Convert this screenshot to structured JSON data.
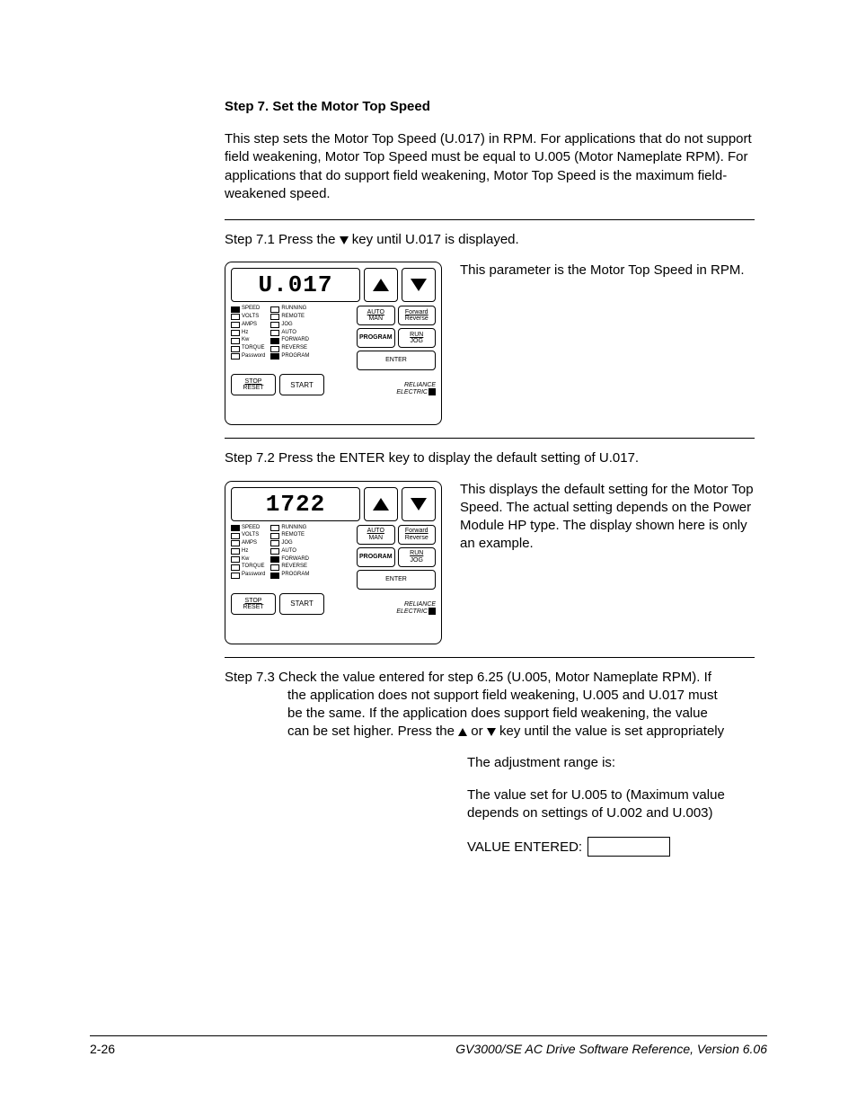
{
  "step_title": "Step 7.   Set the Motor Top Speed",
  "intro": "This step sets the Motor Top Speed (U.017) in RPM. For applications that do not support field weakening, Motor Top Speed must be equal to U.005 (Motor Nameplate RPM). For applications that do support field weakening, Motor Top Speed is the maximum field-weakened speed.",
  "s71_pre": "Step 7.1 Press the ",
  "s71_post": " key until U.017 is displayed.",
  "panel1": {
    "display": "U.017",
    "desc": "This parameter is the Motor Top Speed in RPM.",
    "leds_left": [
      {
        "label": "SPEED",
        "on": true
      },
      {
        "label": "VOLTS",
        "on": false
      },
      {
        "label": "AMPS",
        "on": false
      },
      {
        "label": "Hz",
        "on": false
      },
      {
        "label": "Kw",
        "on": false
      },
      {
        "label": "TORQUE",
        "on": false
      },
      {
        "label": "Password",
        "on": false
      }
    ],
    "leds_right": [
      {
        "label": "RUNNING",
        "on": false
      },
      {
        "label": "REMOTE",
        "on": false
      },
      {
        "label": "JOG",
        "on": false
      },
      {
        "label": "AUTO",
        "on": false
      },
      {
        "label": "FORWARD",
        "on": true
      },
      {
        "label": "REVERSE",
        "on": false
      },
      {
        "label": "PROGRAM",
        "on": true
      }
    ]
  },
  "s72": "Step 7.2 Press the ENTER key to display the default setting of U.017.",
  "panel2": {
    "display": "1722",
    "desc": "This displays the default setting for the Motor Top Speed. The actual setting depends on the Power Module HP type. The display shown here is only an example.",
    "leds_left": [
      {
        "label": "SPEED",
        "on": true
      },
      {
        "label": "VOLTS",
        "on": false
      },
      {
        "label": "AMPS",
        "on": false
      },
      {
        "label": "Hz",
        "on": false
      },
      {
        "label": "Kw",
        "on": false
      },
      {
        "label": "TORQUE",
        "on": false
      },
      {
        "label": "Password",
        "on": false
      }
    ],
    "leds_right": [
      {
        "label": "RUNNING",
        "on": false
      },
      {
        "label": "REMOTE",
        "on": false
      },
      {
        "label": "JOG",
        "on": false
      },
      {
        "label": "AUTO",
        "on": false
      },
      {
        "label": "FORWARD",
        "on": true
      },
      {
        "label": "REVERSE",
        "on": false
      },
      {
        "label": "PROGRAM",
        "on": true
      }
    ]
  },
  "s73_line1": "Step 7.3 Check the value entered for step 6.25 (U.005, Motor Nameplate RPM). If",
  "s73_line2": "the application does not support field weakening, U.005 and U.017 must",
  "s73_line3": "be the same. If the application does support field weakening, the value",
  "s73_line4a": "can be set higher. Press the ",
  "s73_line4b": " or ",
  "s73_line4c": " key until the value is set appropriately",
  "adj_range": "The adjustment range is:",
  "adj_range2": "The value set for U.005 to (Maximum value depends on settings of U.002 and U.003)",
  "value_entered_label": "VALUE ENTERED:",
  "keypad_btns": {
    "auto_top": "AUTO",
    "auto_bot": "MAN",
    "fwd_top": "Forward",
    "fwd_bot": "Reverse",
    "program": "PROGRAM",
    "run_top": "RUN",
    "run_bot": "JOG",
    "enter": "ENTER",
    "stop_top": "STOP",
    "stop_bot": "RESET",
    "start": "START",
    "brand1": "RELIANCE",
    "brand2": "ELECTRIC"
  },
  "footer_left": "2-26",
  "footer_right": "GV3000/SE AC Drive Software Reference, Version 6.06"
}
